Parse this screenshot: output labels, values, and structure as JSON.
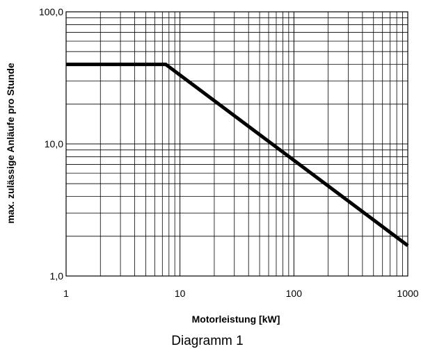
{
  "chart_data": {
    "type": "line",
    "xscale": "log",
    "yscale": "log",
    "xlim": [
      1,
      1000
    ],
    "ylim": [
      1,
      100
    ],
    "xlabel": "Motorleistung [kW]",
    "ylabel": "max. zulässige Anläufe pro Stunde",
    "x_tick_labels": [
      "1",
      "10",
      "100",
      "1000"
    ],
    "y_tick_labels": [
      "1,0",
      "10,0",
      "100,0"
    ],
    "grid": "on (major and minor, both axes)",
    "legend": "none",
    "series": [
      {
        "x": [
          1,
          7.5,
          1000
        ],
        "y": [
          40,
          40,
          1.7
        ]
      }
    ],
    "line_color": "#000000"
  },
  "caption": "Diagramm 1"
}
